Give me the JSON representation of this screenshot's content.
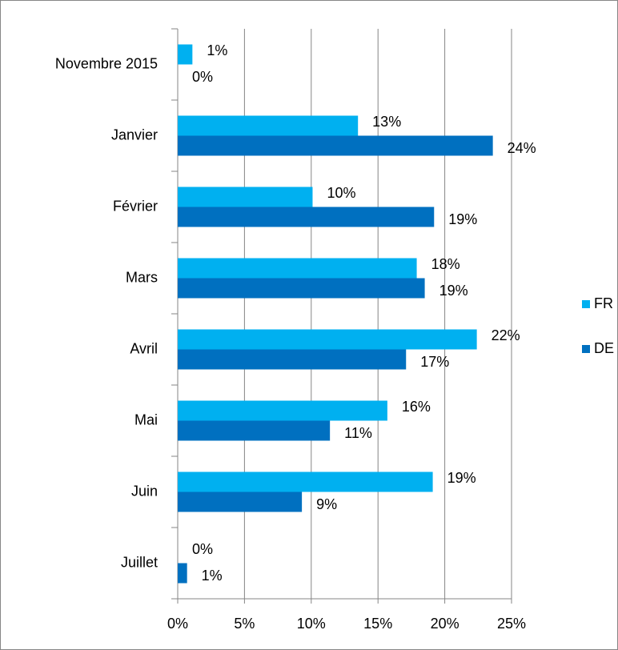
{
  "chart_data": {
    "type": "hbar",
    "categories": [
      "Novembre 2015",
      "Janvier",
      "Février",
      "Mars",
      "Avril",
      "Mai",
      "Juin",
      "Juillet"
    ],
    "series": [
      {
        "name": "FR",
        "color": "#00b0f0",
        "values": [
          1.1,
          13.5,
          10.1,
          17.9,
          22.4,
          15.7,
          19.1,
          0
        ],
        "value_labels": [
          "1%",
          "13%",
          "10%",
          "18%",
          "22%",
          "16%",
          "19%",
          "0%"
        ]
      },
      {
        "name": "DE",
        "color": "#0070c0",
        "values": [
          0,
          23.6,
          19.2,
          18.5,
          17.1,
          11.4,
          9.3,
          0.7
        ],
        "value_labels": [
          "0%",
          "24%",
          "19%",
          "19%",
          "17%",
          "11%",
          "9%",
          "1%"
        ]
      }
    ],
    "xlim": [
      0,
      25
    ],
    "xticks": [
      {
        "value": 0,
        "label": "0%"
      },
      {
        "value": 5,
        "label": "5%"
      },
      {
        "value": 10,
        "label": "10%"
      },
      {
        "value": 15,
        "label": "15%"
      },
      {
        "value": 20,
        "label": "20%"
      },
      {
        "value": 25,
        "label": "25%"
      }
    ],
    "grid": true,
    "legend": "right"
  }
}
